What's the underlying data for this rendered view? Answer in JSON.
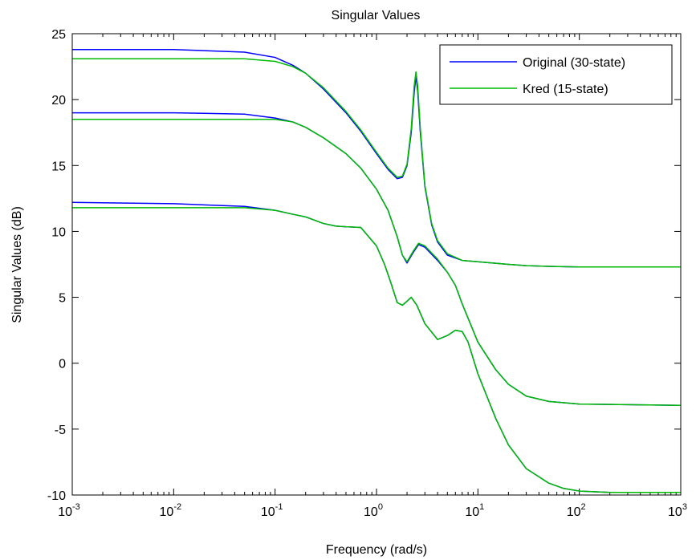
{
  "chart_data": {
    "type": "line",
    "title": "Singular Values",
    "xlabel": "Frequency (rad/s)",
    "ylabel": "Singular Values (dB)",
    "xscale": "log",
    "xlim": [
      0.001,
      1000
    ],
    "ylim": [
      -10,
      25
    ],
    "x_ticks": [
      {
        "value": 0.001,
        "base": "10",
        "exp": "-3"
      },
      {
        "value": 0.01,
        "base": "10",
        "exp": "-2"
      },
      {
        "value": 0.1,
        "base": "10",
        "exp": "-1"
      },
      {
        "value": 1,
        "base": "10",
        "exp": "0"
      },
      {
        "value": 10,
        "base": "10",
        "exp": "1"
      },
      {
        "value": 100,
        "base": "10",
        "exp": "2"
      },
      {
        "value": 1000,
        "base": "10",
        "exp": "3"
      }
    ],
    "y_ticks": [
      {
        "value": 25,
        "label": "25"
      },
      {
        "value": 20,
        "label": "20"
      },
      {
        "value": 15,
        "label": "15"
      },
      {
        "value": 10,
        "label": "10"
      },
      {
        "value": 5,
        "label": "5"
      },
      {
        "value": 0,
        "label": "0"
      },
      {
        "value": -5,
        "label": "-5"
      },
      {
        "value": -10,
        "label": "-10"
      }
    ],
    "grid": false,
    "legend_position": "top-right",
    "series": [
      {
        "name": "Original (30-state)",
        "color": "#0000ff",
        "curves": [
          {
            "x": [
              0.001,
              0.01,
              0.05,
              0.1,
              0.15,
              0.2,
              0.3,
              0.5,
              0.7,
              1,
              1.3,
              1.6,
              1.8,
              2,
              2.2,
              2.35,
              2.45,
              2.55,
              2.7,
              3,
              3.5,
              4,
              5,
              7,
              10,
              20,
              30,
              50,
              100,
              1000
            ],
            "y": [
              23.8,
              23.8,
              23.6,
              23.2,
              22.6,
              22.0,
              20.8,
              19.0,
              17.6,
              15.9,
              14.7,
              14.0,
              14.1,
              15.0,
              17.5,
              20.5,
              21.8,
              20.6,
              17.6,
              13.4,
              10.5,
              9.2,
              8.2,
              7.8,
              7.7,
              7.5,
              7.4,
              7.35,
              7.3,
              7.3
            ]
          },
          {
            "x": [
              0.001,
              0.01,
              0.05,
              0.1,
              0.15,
              0.2,
              0.3,
              0.5,
              0.7,
              1,
              1.3,
              1.6,
              1.8,
              2,
              2.3,
              2.6,
              3,
              4,
              5,
              6,
              7,
              10,
              15,
              20,
              30,
              50,
              100,
              1000
            ],
            "y": [
              19.0,
              19.0,
              18.9,
              18.6,
              18.3,
              17.9,
              17.1,
              15.9,
              14.8,
              13.2,
              11.6,
              9.6,
              8.2,
              7.6,
              8.4,
              9.0,
              8.8,
              7.8,
              6.9,
              5.9,
              4.5,
              1.6,
              -0.5,
              -1.6,
              -2.5,
              -2.9,
              -3.1,
              -3.2
            ]
          },
          {
            "x": [
              0.001,
              0.01,
              0.05,
              0.1,
              0.15,
              0.2,
              0.3,
              0.4,
              0.5,
              0.7,
              1,
              1.2,
              1.4,
              1.6,
              1.8,
              2,
              2.2,
              2.5,
              3,
              4,
              5,
              6,
              7,
              8,
              10,
              15,
              20,
              30,
              50,
              70,
              100,
              200,
              1000
            ],
            "y": [
              12.2,
              12.1,
              11.9,
              11.6,
              11.3,
              11.1,
              10.6,
              10.4,
              10.35,
              10.3,
              8.9,
              7.5,
              6.0,
              4.6,
              4.4,
              4.7,
              5.0,
              4.4,
              3.0,
              1.8,
              2.1,
              2.5,
              2.4,
              1.6,
              -0.8,
              -4.2,
              -6.2,
              -8.0,
              -9.1,
              -9.5,
              -9.7,
              -9.8,
              -9.8
            ]
          }
        ]
      },
      {
        "name": "Kred (15-state)",
        "color": "#00bb00",
        "curves": [
          {
            "x": [
              0.001,
              0.01,
              0.05,
              0.1,
              0.15,
              0.2,
              0.3,
              0.5,
              0.7,
              1,
              1.3,
              1.6,
              1.8,
              2,
              2.2,
              2.35,
              2.45,
              2.55,
              2.7,
              3,
              3.5,
              4,
              5,
              7,
              10,
              20,
              30,
              50,
              100,
              1000
            ],
            "y": [
              23.1,
              23.1,
              23.1,
              22.9,
              22.5,
              22.0,
              20.9,
              19.1,
              17.7,
              16.0,
              14.8,
              14.1,
              14.2,
              15.1,
              17.8,
              21.0,
              22.1,
              21.0,
              17.9,
              13.5,
              10.6,
              9.3,
              8.3,
              7.8,
              7.7,
              7.5,
              7.4,
              7.35,
              7.3,
              7.3
            ]
          },
          {
            "x": [
              0.001,
              0.01,
              0.05,
              0.1,
              0.15,
              0.2,
              0.3,
              0.5,
              0.7,
              1,
              1.3,
              1.6,
              1.8,
              2,
              2.3,
              2.6,
              3,
              4,
              5,
              6,
              7,
              10,
              15,
              20,
              30,
              50,
              100,
              1000
            ],
            "y": [
              18.5,
              18.5,
              18.5,
              18.5,
              18.3,
              17.9,
              17.1,
              15.9,
              14.8,
              13.2,
              11.6,
              9.6,
              8.2,
              7.7,
              8.5,
              9.1,
              8.9,
              7.9,
              6.9,
              5.9,
              4.5,
              1.6,
              -0.5,
              -1.6,
              -2.5,
              -2.9,
              -3.1,
              -3.2
            ]
          },
          {
            "x": [
              0.001,
              0.01,
              0.05,
              0.1,
              0.15,
              0.2,
              0.3,
              0.4,
              0.5,
              0.7,
              1,
              1.2,
              1.4,
              1.6,
              1.8,
              2,
              2.2,
              2.5,
              3,
              4,
              5,
              6,
              7,
              8,
              10,
              15,
              20,
              30,
              50,
              70,
              100,
              200,
              1000
            ],
            "y": [
              11.8,
              11.8,
              11.8,
              11.6,
              11.3,
              11.1,
              10.6,
              10.4,
              10.35,
              10.3,
              8.9,
              7.5,
              6.0,
              4.6,
              4.4,
              4.7,
              5.0,
              4.4,
              3.0,
              1.8,
              2.1,
              2.5,
              2.4,
              1.6,
              -0.8,
              -4.2,
              -6.2,
              -8.0,
              -9.1,
              -9.5,
              -9.7,
              -9.8,
              -9.8
            ]
          }
        ]
      }
    ]
  }
}
